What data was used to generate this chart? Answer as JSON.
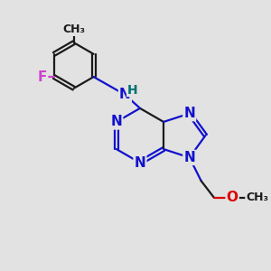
{
  "bg_color": "#e2e2e2",
  "bond_color": "#1a1a1a",
  "N_color": "#1111cc",
  "O_color": "#dd0000",
  "F_color": "#cc44cc",
  "H_color": "#007070",
  "bond_width": 1.6,
  "font_size_atom": 11,
  "font_size_small": 9,
  "xlim": [
    0,
    10
  ],
  "ylim": [
    0,
    10
  ],
  "figsize": [
    3.0,
    3.0
  ],
  "dpi": 100
}
